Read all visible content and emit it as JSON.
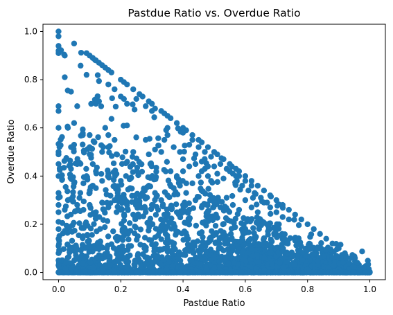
{
  "chart_data": {
    "type": "scatter",
    "title": "Pastdue Ratio vs. Overdue Ratio",
    "xlabel": "Pastdue Ratio",
    "ylabel": "Overdue Ratio",
    "xlim": [
      -0.05,
      1.05
    ],
    "ylim": [
      -0.03,
      1.03
    ],
    "xticks": [
      "0.0",
      "0.2",
      "0.4",
      "0.6",
      "0.8",
      "1.0"
    ],
    "yticks": [
      "0.0",
      "0.2",
      "0.4",
      "0.6",
      "0.8",
      "1.0"
    ],
    "grid": false,
    "legend": "none",
    "series": [
      {
        "color": "#1f77b4",
        "points_note": "dense scatter bounded by x + y <= 1; concentration near y = 0",
        "points": [
          [
            0.0,
            1.0
          ],
          [
            0.0,
            0.98
          ],
          [
            0.0,
            0.94
          ],
          [
            0.0,
            0.92
          ],
          [
            0.0,
            0.91
          ],
          [
            0.02,
            0.9
          ],
          [
            0.05,
            0.95
          ],
          [
            0.0,
            0.69
          ],
          [
            0.0,
            0.67
          ],
          [
            0.0,
            0.6
          ],
          [
            0.0,
            0.5
          ],
          [
            0.0,
            0.49
          ],
          [
            0.0,
            0.45
          ],
          [
            0.0,
            0.4
          ],
          [
            0.0,
            0.33
          ],
          [
            0.0,
            0.31
          ],
          [
            0.0,
            0.28
          ],
          [
            0.0,
            0.25
          ],
          [
            0.0,
            0.21
          ],
          [
            0.0,
            0.18
          ],
          [
            0.0,
            0.14
          ],
          [
            0.0,
            0.11
          ],
          [
            0.0,
            0.08
          ],
          [
            0.0,
            0.05
          ],
          [
            0.0,
            0.03
          ],
          [
            0.0,
            0.0
          ],
          [
            0.02,
            0.81
          ],
          [
            0.04,
            0.75
          ],
          [
            0.06,
            0.69
          ],
          [
            0.05,
            0.62
          ],
          [
            0.03,
            0.6
          ],
          [
            0.05,
            0.53
          ],
          [
            0.04,
            0.52
          ],
          [
            0.06,
            0.45
          ],
          [
            0.04,
            0.43
          ],
          [
            0.03,
            0.3
          ],
          [
            0.05,
            0.37
          ],
          [
            0.02,
            0.26
          ],
          [
            0.09,
            0.91
          ],
          [
            0.1,
            0.9
          ],
          [
            0.11,
            0.89
          ],
          [
            0.12,
            0.88
          ],
          [
            0.13,
            0.87
          ],
          [
            0.14,
            0.86
          ],
          [
            0.15,
            0.85
          ],
          [
            0.16,
            0.84
          ],
          [
            0.17,
            0.83
          ],
          [
            0.2,
            0.8
          ],
          [
            0.21,
            0.79
          ],
          [
            0.22,
            0.78
          ],
          [
            0.24,
            0.76
          ],
          [
            0.26,
            0.74
          ],
          [
            0.27,
            0.73
          ],
          [
            0.29,
            0.71
          ],
          [
            0.3,
            0.7
          ],
          [
            0.33,
            0.67
          ],
          [
            0.34,
            0.66
          ],
          [
            0.35,
            0.65
          ],
          [
            0.36,
            0.64
          ],
          [
            0.38,
            0.62
          ],
          [
            0.4,
            0.6
          ],
          [
            0.41,
            0.59
          ],
          [
            0.43,
            0.57
          ],
          [
            0.45,
            0.55
          ],
          [
            0.46,
            0.54
          ],
          [
            0.48,
            0.52
          ],
          [
            0.5,
            0.5
          ],
          [
            0.51,
            0.49
          ],
          [
            0.53,
            0.47
          ],
          [
            0.55,
            0.45
          ],
          [
            0.57,
            0.43
          ],
          [
            0.58,
            0.42
          ],
          [
            0.6,
            0.4
          ],
          [
            0.62,
            0.38
          ],
          [
            0.64,
            0.36
          ],
          [
            0.66,
            0.34
          ],
          [
            0.68,
            0.32
          ],
          [
            0.7,
            0.3
          ],
          [
            0.72,
            0.28
          ],
          [
            0.74,
            0.26
          ],
          [
            0.76,
            0.24
          ],
          [
            0.78,
            0.22
          ],
          [
            0.8,
            0.2
          ],
          [
            0.82,
            0.18
          ],
          [
            0.84,
            0.16
          ],
          [
            0.86,
            0.14
          ],
          [
            0.88,
            0.12
          ],
          [
            0.9,
            0.1
          ],
          [
            0.92,
            0.08
          ],
          [
            0.94,
            0.06
          ],
          [
            0.96,
            0.04
          ],
          [
            0.98,
            0.02
          ],
          [
            1.0,
            0.0
          ],
          [
            0.09,
            0.82
          ],
          [
            0.12,
            0.7
          ],
          [
            0.13,
            0.71
          ],
          [
            0.16,
            0.78
          ],
          [
            0.18,
            0.76
          ],
          [
            0.2,
            0.73
          ],
          [
            0.21,
            0.72
          ],
          [
            0.22,
            0.7
          ],
          [
            0.25,
            0.72
          ],
          [
            0.28,
            0.69
          ],
          [
            0.3,
            0.67
          ],
          [
            0.31,
            0.68
          ],
          [
            0.22,
            0.61
          ],
          [
            0.24,
            0.5
          ],
          [
            0.28,
            0.55
          ],
          [
            0.29,
            0.49
          ],
          [
            0.31,
            0.51
          ],
          [
            0.33,
            0.5
          ],
          [
            0.34,
            0.55
          ],
          [
            0.35,
            0.57
          ],
          [
            0.37,
            0.52
          ],
          [
            0.39,
            0.5
          ],
          [
            0.4,
            0.47
          ],
          [
            0.42,
            0.53
          ],
          [
            0.44,
            0.49
          ],
          [
            0.46,
            0.46
          ],
          [
            0.48,
            0.44
          ],
          [
            0.35,
            0.6
          ],
          [
            0.4,
            0.58
          ],
          [
            0.43,
            0.55
          ],
          [
            0.45,
            0.52
          ],
          [
            0.47,
            0.5
          ],
          [
            0.49,
            0.48
          ],
          [
            0.15,
            0.6
          ],
          [
            0.16,
            0.57
          ],
          [
            0.18,
            0.55
          ],
          [
            0.16,
            0.52
          ],
          [
            0.14,
            0.5
          ],
          [
            0.1,
            0.57
          ],
          [
            0.1,
            0.52
          ],
          [
            0.1,
            0.49
          ],
          [
            0.11,
            0.45
          ],
          [
            0.12,
            0.42
          ],
          [
            0.09,
            0.4
          ],
          [
            0.08,
            0.37
          ],
          [
            0.07,
            0.33
          ],
          [
            0.1,
            0.33
          ],
          [
            0.12,
            0.35
          ],
          [
            0.14,
            0.38
          ],
          [
            0.16,
            0.4
          ],
          [
            0.18,
            0.36
          ],
          [
            0.2,
            0.38
          ],
          [
            0.19,
            0.33
          ],
          [
            0.21,
            0.31
          ],
          [
            0.23,
            0.35
          ],
          [
            0.25,
            0.3
          ],
          [
            0.27,
            0.33
          ],
          [
            0.29,
            0.36
          ],
          [
            0.31,
            0.33
          ],
          [
            0.33,
            0.3
          ],
          [
            0.35,
            0.32
          ],
          [
            0.37,
            0.35
          ],
          [
            0.39,
            0.36
          ],
          [
            0.41,
            0.33
          ],
          [
            0.43,
            0.37
          ],
          [
            0.45,
            0.4
          ],
          [
            0.47,
            0.43
          ],
          [
            0.49,
            0.38
          ],
          [
            0.51,
            0.41
          ],
          [
            0.53,
            0.39
          ],
          [
            0.55,
            0.42
          ],
          [
            0.57,
            0.4
          ],
          [
            0.59,
            0.36
          ],
          [
            0.61,
            0.34
          ],
          [
            0.63,
            0.33
          ],
          [
            0.65,
            0.31
          ],
          [
            0.67,
            0.29
          ],
          [
            0.5,
            0.44
          ],
          [
            0.52,
            0.45
          ],
          [
            0.54,
            0.43
          ],
          [
            0.56,
            0.41
          ],
          [
            0.58,
            0.4
          ],
          [
            0.6,
            0.38
          ],
          [
            0.62,
            0.36
          ],
          [
            0.36,
            0.42
          ],
          [
            0.38,
            0.4
          ],
          [
            0.4,
            0.42
          ],
          [
            0.42,
            0.44
          ],
          [
            0.44,
            0.45
          ],
          [
            0.46,
            0.42
          ],
          [
            0.48,
            0.4
          ],
          [
            0.06,
            0.28
          ],
          [
            0.08,
            0.26
          ],
          [
            0.1,
            0.28
          ],
          [
            0.12,
            0.25
          ],
          [
            0.14,
            0.29
          ],
          [
            0.16,
            0.27
          ],
          [
            0.18,
            0.3
          ],
          [
            0.2,
            0.26
          ],
          [
            0.22,
            0.28
          ],
          [
            0.24,
            0.24
          ],
          [
            0.26,
            0.27
          ],
          [
            0.28,
            0.25
          ],
          [
            0.3,
            0.28
          ],
          [
            0.32,
            0.26
          ],
          [
            0.34,
            0.24
          ],
          [
            0.36,
            0.27
          ],
          [
            0.38,
            0.25
          ],
          [
            0.4,
            0.28
          ],
          [
            0.42,
            0.26
          ],
          [
            0.44,
            0.3
          ],
          [
            0.46,
            0.27
          ],
          [
            0.48,
            0.25
          ],
          [
            0.5,
            0.29
          ],
          [
            0.52,
            0.27
          ],
          [
            0.54,
            0.31
          ],
          [
            0.56,
            0.28
          ],
          [
            0.58,
            0.26
          ],
          [
            0.6,
            0.3
          ],
          [
            0.62,
            0.27
          ],
          [
            0.64,
            0.25
          ],
          [
            0.66,
            0.29
          ],
          [
            0.68,
            0.27
          ],
          [
            0.7,
            0.25
          ],
          [
            0.72,
            0.23
          ],
          [
            0.74,
            0.22
          ]
        ]
      }
    ]
  }
}
